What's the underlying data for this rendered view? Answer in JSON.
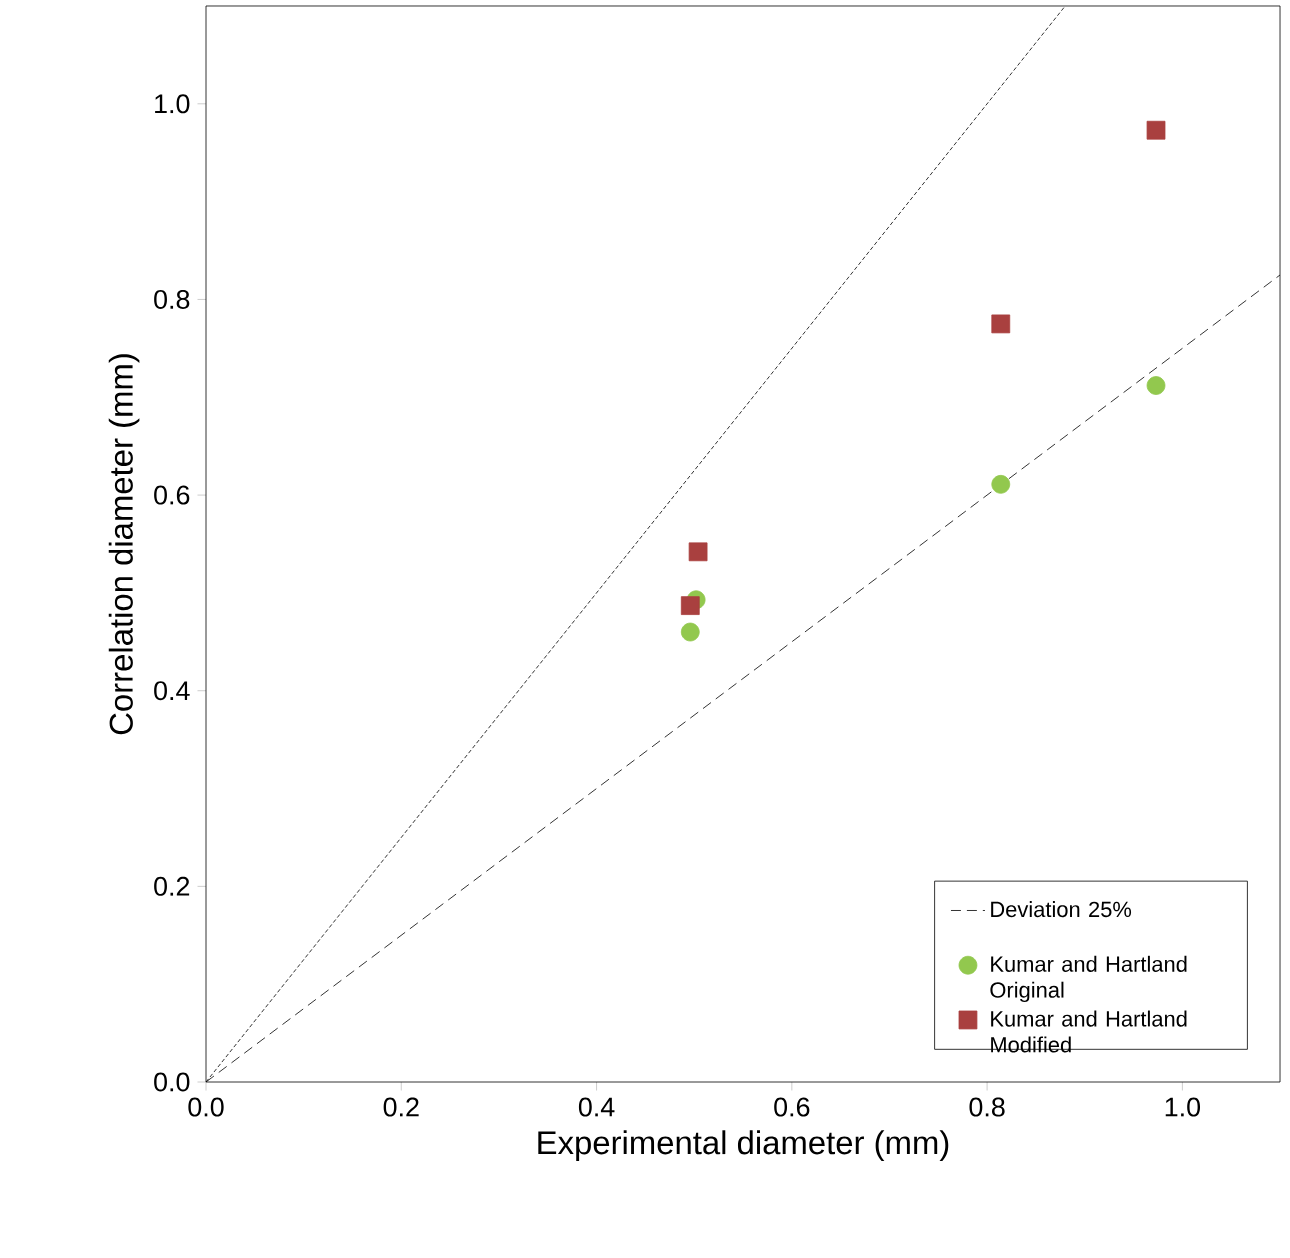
{
  "chart_data": {
    "type": "scatter",
    "xlabel": "Experimental diameter (mm)",
    "ylabel": "Correlation diameter (mm)",
    "xlim": [
      0,
      1.1
    ],
    "ylim": [
      0,
      1.1
    ],
    "xticks": [
      {
        "value": 0,
        "label": "0.0"
      },
      {
        "value": 0.2,
        "label": "0.2"
      },
      {
        "value": 0.4,
        "label": "0.4"
      },
      {
        "value": 0.6,
        "label": "0.6"
      },
      {
        "value": 0.8,
        "label": "0.8"
      },
      {
        "value": 1.0,
        "label": "1.0"
      }
    ],
    "yticks": [
      {
        "value": 0,
        "label": "0.0"
      },
      {
        "value": 0.2,
        "label": "0.2"
      },
      {
        "value": 0.4,
        "label": "0.4"
      },
      {
        "value": 0.6,
        "label": "0.6"
      },
      {
        "value": 0.8,
        "label": "0.8"
      },
      {
        "value": 1.0,
        "label": "1.0"
      }
    ],
    "grid": false,
    "legend": "bottom right",
    "series": [
      {
        "type": "line",
        "color": "#000000",
        "line_style": "dotted",
        "marker": "none",
        "x": [
          0,
          0.88
        ],
        "values": [
          0,
          1.1
        ]
      },
      {
        "name": "Deviation 25%",
        "type": "line",
        "color": "#000000",
        "line_style": "dashed",
        "marker": "none",
        "x": [
          0,
          1.1
        ],
        "values": [
          0,
          0.825
        ]
      },
      {
        "name": "Kumar and Hartland Original",
        "color": "#92c84e",
        "marker": "circle",
        "x": [
          0.502,
          0.496,
          0.814,
          0.973
        ],
        "values": [
          0.493,
          0.46,
          0.611,
          0.712
        ]
      },
      {
        "name": "Kumar and Hartland Modified",
        "color": "#a9403f",
        "marker": "square",
        "x": [
          0.504,
          0.496,
          0.814,
          0.973
        ],
        "values": [
          0.542,
          0.487,
          0.775,
          0.973
        ]
      }
    ]
  }
}
